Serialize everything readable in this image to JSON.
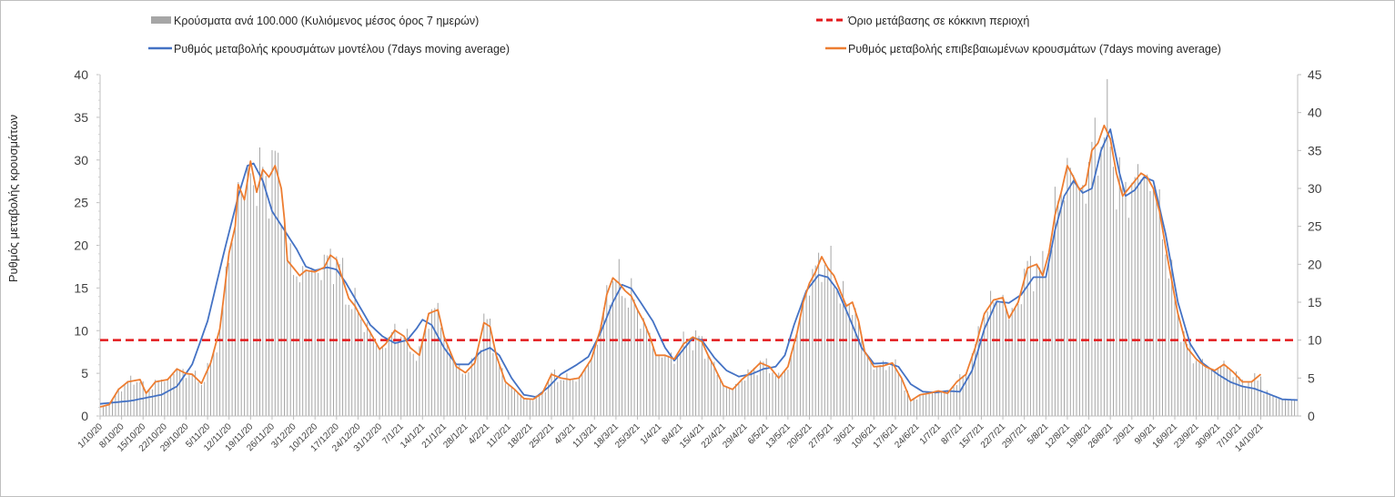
{
  "chart_data": {
    "type": "bar+line",
    "title": "",
    "ylabel_left": "Ρυθμός μεταβολής κρουσμάτων",
    "ylabel_right": "",
    "ylim_left": [
      0,
      40
    ],
    "ylim_right": [
      0,
      45
    ],
    "yticks_left": [
      "0",
      "5",
      "10",
      "15",
      "20",
      "25",
      "30",
      "35",
      "40"
    ],
    "yticks_right": [
      "0",
      "5",
      "10",
      "15",
      "20",
      "25",
      "30",
      "35",
      "40",
      "45"
    ],
    "threshold": {
      "name": "Όριο μετάβασης σε κόκκινη περιοχή",
      "value": 10,
      "axis": "right",
      "color": "#e31a1c",
      "dash": "dashed"
    },
    "series": [
      {
        "name": "Κρούσματα ανά 100.000 (Κυλιόμενος μέσος όρος 7 ημερών)",
        "kind": "bar",
        "axis": "right",
        "color": "#a6a6a6"
      },
      {
        "name": "Ρυθμός μεταβολής κρουσμάτων μοντέλου (7days moving average)",
        "kind": "line",
        "axis": "right",
        "color": "#4472c4"
      },
      {
        "name": "Ρυθμός μεταβολής επιβεβαιωμένων κρουσμάτων (7days moving average)",
        "kind": "line",
        "axis": "right",
        "color": "#ed7d31"
      }
    ],
    "x_ticks": [
      "1/10/20",
      "8/10/20",
      "15/10/20",
      "22/10/20",
      "29/10/20",
      "5/11/20",
      "12/11/20",
      "19/11/20",
      "26/11/20",
      "3/12/20",
      "10/12/20",
      "17/12/20",
      "24/12/20",
      "31/12/20",
      "7/1/21",
      "14/1/21",
      "21/1/21",
      "28/1/21",
      "4/2/21",
      "11/2/21",
      "18/2/21",
      "25/2/21",
      "4/3/21",
      "11/3/21",
      "18/3/21",
      "25/3/21",
      "1/4/21",
      "8/4/21",
      "15/4/21",
      "22/4/21",
      "29/4/21",
      "6/5/21",
      "13/5/21",
      "20/5/21",
      "27/5/21",
      "3/6/21",
      "10/6/21",
      "17/6/21",
      "24/6/21",
      "1/7/21",
      "8/7/21",
      "15/7/21",
      "22/7/21",
      "29/7/21",
      "5/8/21",
      "12/8/21",
      "19/8/21",
      "26/8/21",
      "2/9/21",
      "9/9/21",
      "16/9/21",
      "23/9/21",
      "30/9/21",
      "7/10/21",
      "14/10/21"
    ],
    "model_keypoints": [
      [
        0,
        1.6
      ],
      [
        10,
        2.0
      ],
      [
        20,
        2.8
      ],
      [
        25,
        3.9
      ],
      [
        30,
        6.8
      ],
      [
        35,
        12.5
      ],
      [
        40,
        21.0
      ],
      [
        45,
        29.0
      ],
      [
        48,
        33.0
      ],
      [
        50,
        33.3
      ],
      [
        53,
        31.0
      ],
      [
        56,
        27.0
      ],
      [
        60,
        24.5
      ],
      [
        64,
        22.0
      ],
      [
        67,
        19.7
      ],
      [
        70,
        19.2
      ],
      [
        74,
        19.6
      ],
      [
        77,
        19.3
      ],
      [
        80,
        17.6
      ],
      [
        84,
        14.8
      ],
      [
        88,
        12.0
      ],
      [
        92,
        10.5
      ],
      [
        96,
        9.6
      ],
      [
        100,
        10.0
      ],
      [
        103,
        11.5
      ],
      [
        105,
        12.7
      ],
      [
        108,
        12.0
      ],
      [
        112,
        9.0
      ],
      [
        116,
        6.8
      ],
      [
        120,
        6.8
      ],
      [
        124,
        8.5
      ],
      [
        127,
        9.0
      ],
      [
        130,
        8.0
      ],
      [
        134,
        5.0
      ],
      [
        138,
        2.8
      ],
      [
        142,
        2.5
      ],
      [
        146,
        3.8
      ],
      [
        150,
        5.5
      ],
      [
        155,
        6.7
      ],
      [
        159,
        7.8
      ],
      [
        163,
        11.0
      ],
      [
        167,
        15.0
      ],
      [
        170,
        17.3
      ],
      [
        173,
        16.8
      ],
      [
        176,
        15.0
      ],
      [
        180,
        12.5
      ],
      [
        184,
        9.0
      ],
      [
        187,
        7.3
      ],
      [
        190,
        8.8
      ],
      [
        193,
        10.3
      ],
      [
        196,
        10.0
      ],
      [
        200,
        7.7
      ],
      [
        204,
        6.0
      ],
      [
        208,
        5.2
      ],
      [
        212,
        5.5
      ],
      [
        216,
        6.2
      ],
      [
        220,
        6.5
      ],
      [
        223,
        8.0
      ],
      [
        226,
        12.0
      ],
      [
        230,
        16.5
      ],
      [
        234,
        18.6
      ],
      [
        237,
        18.3
      ],
      [
        240,
        16.7
      ],
      [
        244,
        13.0
      ],
      [
        248,
        9.0
      ],
      [
        252,
        6.9
      ],
      [
        256,
        7.0
      ],
      [
        260,
        6.5
      ],
      [
        264,
        4.2
      ],
      [
        268,
        3.2
      ],
      [
        272,
        3.1
      ],
      [
        276,
        3.3
      ],
      [
        280,
        3.2
      ],
      [
        284,
        6.0
      ],
      [
        288,
        11.5
      ],
      [
        292,
        15.1
      ],
      [
        296,
        14.9
      ],
      [
        300,
        16.0
      ],
      [
        304,
        18.3
      ],
      [
        308,
        18.3
      ],
      [
        311,
        24.5
      ],
      [
        314,
        29.0
      ],
      [
        317,
        31.0
      ],
      [
        320,
        29.4
      ],
      [
        323,
        30.0
      ],
      [
        326,
        35.0
      ],
      [
        329,
        37.8
      ],
      [
        332,
        32.0
      ],
      [
        334,
        29.0
      ],
      [
        337,
        29.8
      ],
      [
        340,
        31.5
      ],
      [
        343,
        31.0
      ],
      [
        347,
        24.0
      ],
      [
        351,
        15.0
      ],
      [
        355,
        9.5
      ],
      [
        359,
        7.0
      ],
      [
        364,
        5.5
      ],
      [
        368,
        4.5
      ],
      [
        372,
        3.9
      ],
      [
        376,
        3.6
      ],
      [
        380,
        3.0
      ],
      [
        385,
        2.2
      ],
      [
        390,
        2.1
      ]
    ],
    "confirmed_keypoints": [
      [
        0,
        1.2
      ],
      [
        3,
        1.5
      ],
      [
        6,
        3.5
      ],
      [
        9,
        4.5
      ],
      [
        13,
        4.8
      ],
      [
        15,
        3.0
      ],
      [
        18,
        4.5
      ],
      [
        22,
        4.8
      ],
      [
        25,
        6.2
      ],
      [
        28,
        5.6
      ],
      [
        30,
        5.5
      ],
      [
        33,
        4.3
      ],
      [
        36,
        7.0
      ],
      [
        39,
        11.5
      ],
      [
        42,
        21.5
      ],
      [
        44,
        25.0
      ],
      [
        45,
        30.5
      ],
      [
        47,
        28.5
      ],
      [
        49,
        33.6
      ],
      [
        51,
        29.5
      ],
      [
        53,
        32.5
      ],
      [
        55,
        31.5
      ],
      [
        57,
        33.0
      ],
      [
        59,
        30.0
      ],
      [
        60,
        26.0
      ],
      [
        61,
        20.5
      ],
      [
        63,
        19.5
      ],
      [
        65,
        18.5
      ],
      [
        67,
        19.2
      ],
      [
        70,
        19.0
      ],
      [
        73,
        19.6
      ],
      [
        75,
        21.2
      ],
      [
        77,
        20.6
      ],
      [
        79,
        18.0
      ],
      [
        81,
        15.5
      ],
      [
        83,
        14.5
      ],
      [
        85,
        13.0
      ],
      [
        88,
        11.0
      ],
      [
        91,
        8.8
      ],
      [
        93,
        9.5
      ],
      [
        96,
        11.3
      ],
      [
        99,
        10.5
      ],
      [
        101,
        9.0
      ],
      [
        104,
        8.0
      ],
      [
        107,
        13.5
      ],
      [
        110,
        14.0
      ],
      [
        112,
        10.5
      ],
      [
        116,
        6.5
      ],
      [
        119,
        5.7
      ],
      [
        122,
        7.0
      ],
      [
        125,
        12.3
      ],
      [
        127,
        11.8
      ],
      [
        129,
        8.0
      ],
      [
        132,
        4.5
      ],
      [
        135,
        3.5
      ],
      [
        138,
        2.3
      ],
      [
        141,
        2.2
      ],
      [
        144,
        3.0
      ],
      [
        147,
        5.5
      ],
      [
        150,
        5.0
      ],
      [
        153,
        4.8
      ],
      [
        156,
        5.0
      ],
      [
        160,
        7.5
      ],
      [
        163,
        11.5
      ],
      [
        165,
        16.0
      ],
      [
        167,
        18.2
      ],
      [
        169,
        17.5
      ],
      [
        171,
        16.5
      ],
      [
        173,
        15.8
      ],
      [
        175,
        14.0
      ],
      [
        177,
        12.5
      ],
      [
        179,
        10.5
      ],
      [
        181,
        8.0
      ],
      [
        184,
        8.0
      ],
      [
        187,
        7.5
      ],
      [
        190,
        9.5
      ],
      [
        193,
        10.4
      ],
      [
        196,
        9.8
      ],
      [
        198,
        8.0
      ],
      [
        200,
        6.5
      ],
      [
        203,
        4.0
      ],
      [
        206,
        3.5
      ],
      [
        209,
        4.8
      ],
      [
        212,
        5.8
      ],
      [
        215,
        7.0
      ],
      [
        218,
        6.5
      ],
      [
        221,
        5.0
      ],
      [
        224,
        6.5
      ],
      [
        227,
        11.0
      ],
      [
        229,
        15.0
      ],
      [
        231,
        17.5
      ],
      [
        233,
        19.0
      ],
      [
        235,
        21.0
      ],
      [
        237,
        19.5
      ],
      [
        239,
        18.5
      ],
      [
        241,
        16.5
      ],
      [
        243,
        14.5
      ],
      [
        245,
        15.0
      ],
      [
        247,
        12.5
      ],
      [
        249,
        8.5
      ],
      [
        252,
        6.5
      ],
      [
        255,
        6.6
      ],
      [
        258,
        7.0
      ],
      [
        261,
        5.0
      ],
      [
        264,
        2.0
      ],
      [
        267,
        2.8
      ],
      [
        270,
        3.0
      ],
      [
        273,
        3.3
      ],
      [
        276,
        3.0
      ],
      [
        279,
        4.5
      ],
      [
        282,
        5.5
      ],
      [
        285,
        9.0
      ],
      [
        288,
        13.5
      ],
      [
        291,
        15.3
      ],
      [
        294,
        15.6
      ],
      [
        296,
        12.9
      ],
      [
        299,
        15.0
      ],
      [
        302,
        19.5
      ],
      [
        305,
        20.0
      ],
      [
        307,
        18.5
      ],
      [
        309,
        21.5
      ],
      [
        311,
        26.5
      ],
      [
        313,
        29.5
      ],
      [
        315,
        33.0
      ],
      [
        317,
        31.5
      ],
      [
        319,
        29.8
      ],
      [
        321,
        30.5
      ],
      [
        323,
        35.0
      ],
      [
        325,
        36.0
      ],
      [
        327,
        38.3
      ],
      [
        329,
        36.5
      ],
      [
        331,
        32.0
      ],
      [
        333,
        29.0
      ],
      [
        335,
        30.0
      ],
      [
        337,
        31.0
      ],
      [
        339,
        32.0
      ],
      [
        341,
        31.5
      ],
      [
        343,
        30.0
      ],
      [
        345,
        27.0
      ],
      [
        348,
        20.0
      ],
      [
        351,
        13.5
      ],
      [
        354,
        9.0
      ],
      [
        357,
        7.5
      ],
      [
        360,
        6.5
      ],
      [
        363,
        6.0
      ],
      [
        366,
        6.8
      ],
      [
        369,
        5.8
      ],
      [
        372,
        4.5
      ],
      [
        375,
        4.5
      ],
      [
        378,
        5.5
      ]
    ],
    "bars_note": "daily bars (Oct 2020 - Oct 2021) follow the confirmed-case curve with daily noise"
  },
  "legend": {
    "bars": "Κρούσματα ανά 100.000 (Κυλιόμενος μέσος όρος 7 ημερών)",
    "threshold": "Όριο μετάβασης σε κόκκινη περιοχή",
    "model": "Ρυθμός μεταβολής κρουσμάτων μοντέλου (7days moving average)",
    "confirmed": "Ρυθμός μεταβολής επιβεβαιωμένων κρουσμάτων (7days moving average)"
  }
}
